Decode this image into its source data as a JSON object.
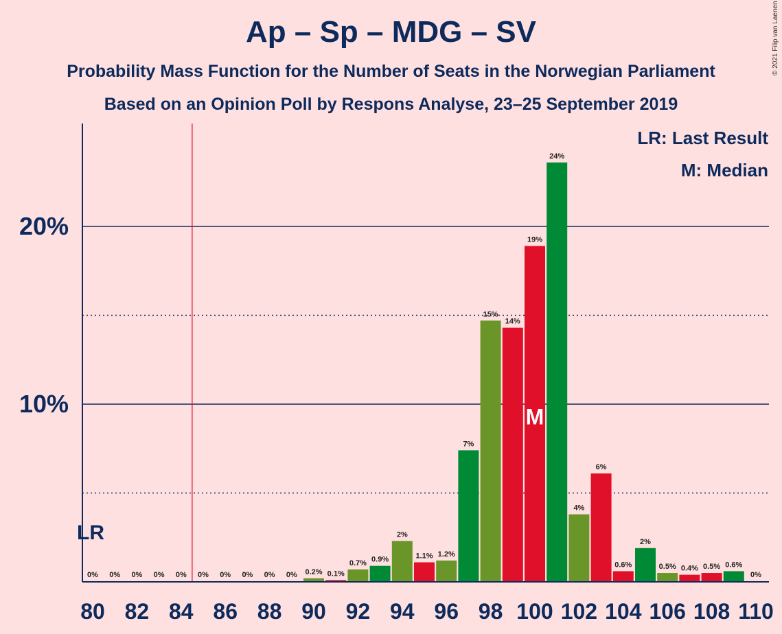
{
  "title": "Ap – Sp – MDG – SV",
  "subtitle": "Probability Mass Function for the Number of Seats in the Norwegian Parliament",
  "subtitle2": "Based on an Opinion Poll by Respons Analyse, 23–25 September 2019",
  "copyright": "© 2021 Filip van Laenen",
  "legend": {
    "last_result": "LR: Last Result",
    "median": "M: Median"
  },
  "colors": {
    "red": "#e0102a",
    "green": "#008a35",
    "olive": "#6a9528",
    "navy": "#0d2a5c",
    "background": "#ffe0e0"
  },
  "chart_data": {
    "type": "bar",
    "x": [
      80,
      81,
      82,
      83,
      84,
      85,
      86,
      87,
      88,
      89,
      90,
      91,
      92,
      93,
      94,
      95,
      96,
      97,
      98,
      99,
      100,
      101,
      102,
      103,
      104,
      105,
      106,
      107,
      108,
      109,
      110
    ],
    "values": [
      0,
      0,
      0,
      0,
      0,
      0,
      0,
      0,
      0,
      0,
      0.2,
      0.1,
      0.7,
      0.9,
      2.3,
      1.1,
      1.2,
      7.4,
      14.7,
      14.3,
      18.9,
      23.6,
      3.8,
      6.1,
      0.6,
      1.9,
      0.5,
      0.4,
      0.5,
      0.6,
      0
    ],
    "labels": [
      "0%",
      "0%",
      "0%",
      "0%",
      "0%",
      "0%",
      "0%",
      "0%",
      "0%",
      "0%",
      "0.2%",
      "0.1%",
      "0.7%",
      "0.9%",
      "2%",
      "1.1%",
      "1.2%",
      "7%",
      "15%",
      "14%",
      "19%",
      "24%",
      "4%",
      "6%",
      "0.6%",
      "2%",
      "0.5%",
      "0.4%",
      "0.5%",
      "0.6%",
      "0%"
    ],
    "x_tick_labels": [
      "80",
      "82",
      "84",
      "86",
      "88",
      "90",
      "92",
      "94",
      "96",
      "98",
      "100",
      "102",
      "104",
      "106",
      "108",
      "110"
    ],
    "y_tick_labels": [
      "10%",
      "20%"
    ],
    "ylim": [
      0,
      25.8
    ],
    "solid_gridlines": [
      10,
      20
    ],
    "dotted_gridlines": [
      5,
      15
    ],
    "last_result": {
      "seat": 85,
      "label": "LR"
    },
    "median": {
      "seat": 100,
      "label": "M"
    }
  }
}
